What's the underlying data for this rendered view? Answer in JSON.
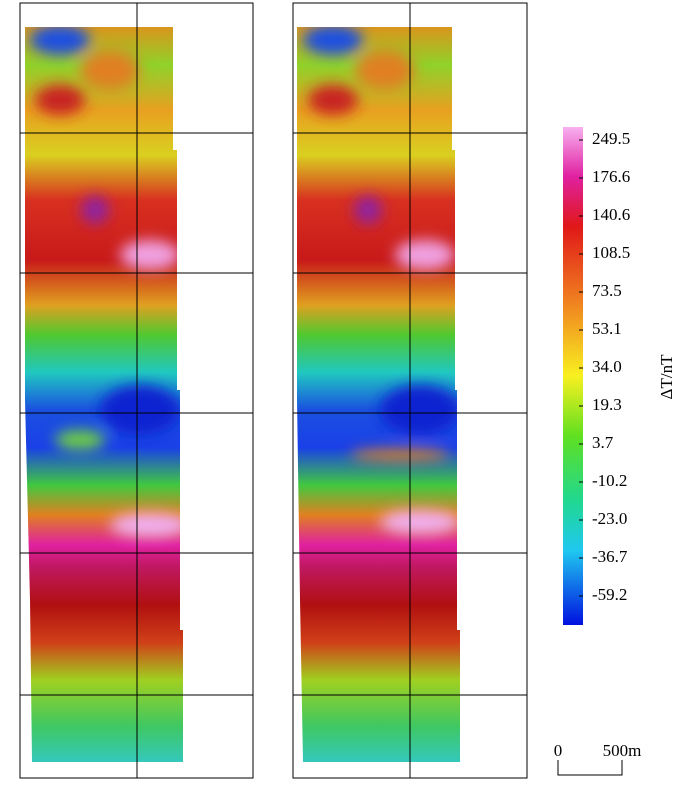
{
  "colorbar": {
    "label": "ΔT/nT",
    "ticks": [
      249.5,
      176.6,
      140.6,
      108.5,
      73.5,
      53.1,
      {
        "value": 34,
        "label": "34.0"
      },
      19.3,
      3.7,
      -10.2,
      {
        "value": -23,
        "label": "-23.0"
      },
      -36.7,
      -59.2
    ]
  },
  "scale_bar": {
    "start": 0,
    "end_label": "500m"
  }
}
